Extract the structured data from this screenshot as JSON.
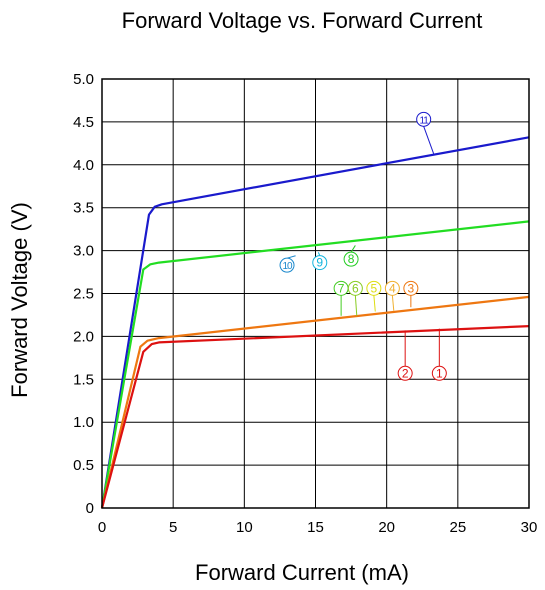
{
  "chart_data": {
    "type": "line",
    "title": "Forward Voltage vs. Forward Current",
    "xlabel": "Forward Current (mA)",
    "ylabel": "Forward Voltage (V)",
    "xlim": [
      0,
      30
    ],
    "ylim": [
      0,
      5.0
    ],
    "x_ticks": [
      "0",
      "5",
      "10",
      "15",
      "20",
      "25",
      "30"
    ],
    "y_ticks": [
      "0",
      "0.5",
      "1.0",
      "1.5",
      "2.0",
      "2.5",
      "3.0",
      "3.5",
      "4.0",
      "4.5",
      "5.0"
    ],
    "grid": true,
    "series": [
      {
        "color": "#1a1acc",
        "x": [
          0,
          3.3,
          3.7,
          4.2,
          30
        ],
        "y": [
          0,
          3.42,
          3.51,
          3.54,
          4.32
        ]
      },
      {
        "color": "#22dd22",
        "x": [
          0,
          2.9,
          3.4,
          4.0,
          30
        ],
        "y": [
          0,
          2.78,
          2.84,
          2.86,
          3.34
        ]
      },
      {
        "color": "#ee7711",
        "x": [
          0,
          2.7,
          3.2,
          4.0,
          30
        ],
        "y": [
          0,
          1.88,
          1.95,
          1.98,
          2.46
        ]
      },
      {
        "color": "#dd1111",
        "x": [
          0,
          2.9,
          3.5,
          4.0,
          30
        ],
        "y": [
          0,
          1.82,
          1.91,
          1.93,
          2.12
        ]
      }
    ],
    "annotations": [
      {
        "text": "11",
        "color": "#1a1acc",
        "x": 22.6,
        "y": 4.53,
        "lx": 23.3,
        "ly": 4.13
      },
      {
        "text": "10",
        "color": "#1a88cc",
        "x": 13.0,
        "y": 2.83,
        "lx": 13.6,
        "ly": 2.94
      },
      {
        "text": "9",
        "color": "#11b4dd",
        "x": 15.3,
        "y": 2.86,
        "lx": 15.2,
        "ly": 2.98
      },
      {
        "text": "8",
        "color": "#22cc22",
        "x": 17.5,
        "y": 2.9,
        "lx": 17.8,
        "ly": 3.06
      },
      {
        "text": "7",
        "color": "#44cc22",
        "x": 16.8,
        "y": 2.56,
        "lx": 16.8,
        "ly": 2.24
      },
      {
        "text": "6",
        "color": "#88cc22",
        "x": 17.8,
        "y": 2.56,
        "lx": 17.9,
        "ly": 2.24
      },
      {
        "text": "5",
        "color": "#dddd11",
        "x": 19.1,
        "y": 2.56,
        "lx": 19.2,
        "ly": 2.29
      },
      {
        "text": "4",
        "color": "#f0b030",
        "x": 20.4,
        "y": 2.56,
        "lx": 20.5,
        "ly": 2.3
      },
      {
        "text": "3",
        "color": "#ee7711",
        "x": 21.7,
        "y": 2.56,
        "lx": 21.7,
        "ly": 2.34
      },
      {
        "text": "2",
        "color": "#dd1111",
        "x": 21.3,
        "y": 1.57,
        "lx": 21.3,
        "ly": 2.07
      },
      {
        "text": "1",
        "color": "#dd1111",
        "x": 23.7,
        "y": 1.57,
        "lx": 23.7,
        "ly": 2.09
      }
    ]
  }
}
